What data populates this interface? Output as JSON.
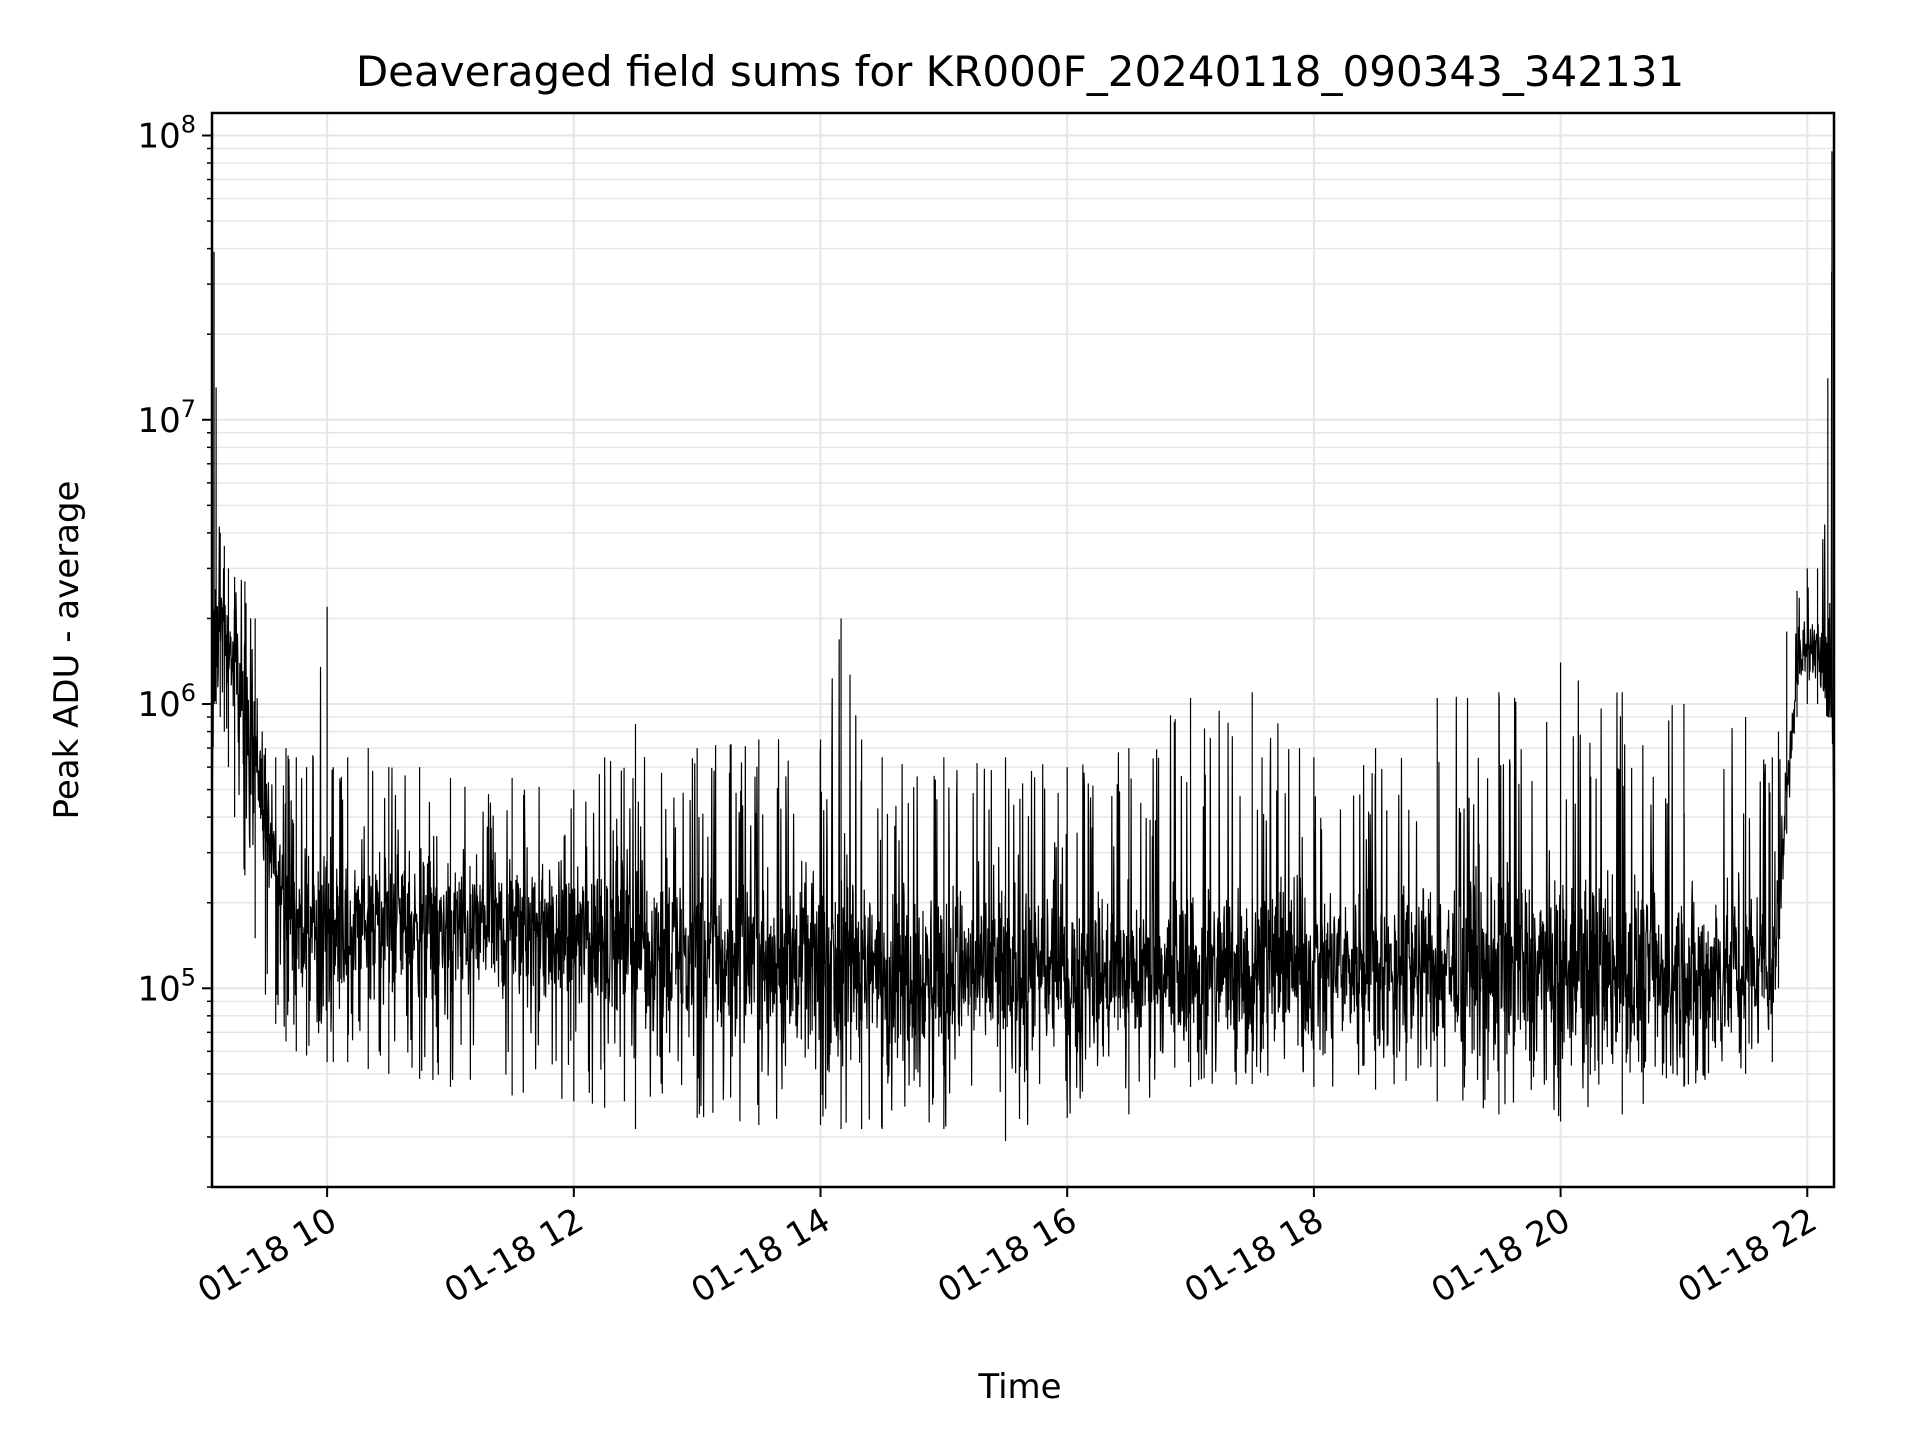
{
  "chart_data": {
    "type": "line",
    "title": "Deaveraged field sums for KR000F_20240118_090343_342131",
    "xlabel": "Time",
    "ylabel": "Peak ADU - average",
    "yscale": "log",
    "ylim": [
      20000,
      120000000
    ],
    "xlim": [
      "2024-01-18T09:04:00",
      "2024-01-18T22:13:00"
    ],
    "grid": true,
    "x_ticks": [
      "2024-01-18T10:00",
      "2024-01-18T12:00",
      "2024-01-18T14:00",
      "2024-01-18T16:00",
      "2024-01-18T18:00",
      "2024-01-18T20:00",
      "2024-01-18T22:00"
    ],
    "x_tick_labels": [
      "01-18 10",
      "01-18 12",
      "01-18 14",
      "01-18 16",
      "01-18 18",
      "01-18 20",
      "01-18 22"
    ],
    "y_ticks": [
      100000,
      1000000,
      10000000,
      100000000
    ],
    "y_tick_labels": [
      {
        "base": "10",
        "exp": "5"
      },
      {
        "base": "10",
        "exp": "6"
      },
      {
        "base": "10",
        "exp": "7"
      },
      {
        "base": "10",
        "exp": "8"
      }
    ],
    "line_color": "#000000",
    "grid_color": "#e6e6e6",
    "series": [
      {
        "x": [
          "09:04",
          "09:05",
          "09:06",
          "09:08",
          "09:10",
          "09:12",
          "09:15",
          "09:20",
          "09:25",
          "09:30",
          "09:35",
          "09:40",
          "09:45",
          "09:50",
          "10:00",
          "10:03",
          "10:10",
          "10:20",
          "10:30",
          "10:45",
          "11:00",
          "11:30",
          "12:00",
          "12:15",
          "12:30",
          "13:00",
          "13:30",
          "14:00",
          "14:10",
          "14:20",
          "14:30",
          "15:00",
          "15:30",
          "16:00",
          "16:30",
          "17:00",
          "17:30",
          "18:00",
          "18:30",
          "19:00",
          "19:30",
          "20:00",
          "20:30",
          "21:00",
          "21:30",
          "21:43",
          "21:46",
          "21:50",
          "21:55",
          "22:00",
          "22:05",
          "22:10",
          "22:12",
          "22:13"
        ],
        "baseline": [
          380000,
          1700000,
          2000000,
          1800000,
          1900000,
          1600000,
          1300000,
          1000000,
          700000,
          400000,
          250000,
          190000,
          170000,
          165000,
          160000,
          160000,
          165000,
          170000,
          175000,
          170000,
          165000,
          160000,
          150000,
          150000,
          145000,
          130000,
          125000,
          120000,
          120000,
          118000,
          115000,
          115000,
          112000,
          110000,
          110000,
          115000,
          118000,
          120000,
          120000,
          120000,
          118000,
          115000,
          115000,
          115000,
          115000,
          115000,
          200000,
          500000,
          1300000,
          1600000,
          1500000,
          1400000,
          1200000,
          380000
        ],
        "min": [
          380000,
          1000000,
          1000000,
          900000,
          800000,
          600000,
          400000,
          250000,
          150000,
          95000,
          75000,
          65000,
          60000,
          58000,
          55000,
          55000,
          55000,
          52000,
          50000,
          48000,
          45000,
          42000,
          40000,
          38000,
          32000,
          35000,
          33000,
          33000,
          32000,
          32000,
          32000,
          32000,
          29000,
          35000,
          36000,
          45000,
          46000,
          45000,
          44000,
          40000,
          36000,
          34000,
          36000,
          45000,
          50000,
          55000,
          100000,
          350000,
          900000,
          1000000,
          1000000,
          900000,
          900000,
          380000
        ],
        "max": [
          380000,
          39000000,
          13000000,
          4000000,
          3600000,
          3000000,
          2800000,
          2700000,
          2000000,
          700000,
          650000,
          700000,
          650000,
          600000,
          2200000,
          600000,
          650000,
          700000,
          600000,
          600000,
          550000,
          550000,
          500000,
          650000,
          850000,
          700000,
          750000,
          750000,
          2000000,
          750000,
          650000,
          650000,
          650000,
          600000,
          700000,
          1050000,
          1100000,
          650000,
          700000,
          1050000,
          1100000,
          1400000,
          1100000,
          1000000,
          900000,
          650000,
          800000,
          1800000,
          2500000,
          3000000,
          3000000,
          14000000,
          88000000,
          380000
        ]
      }
    ]
  }
}
